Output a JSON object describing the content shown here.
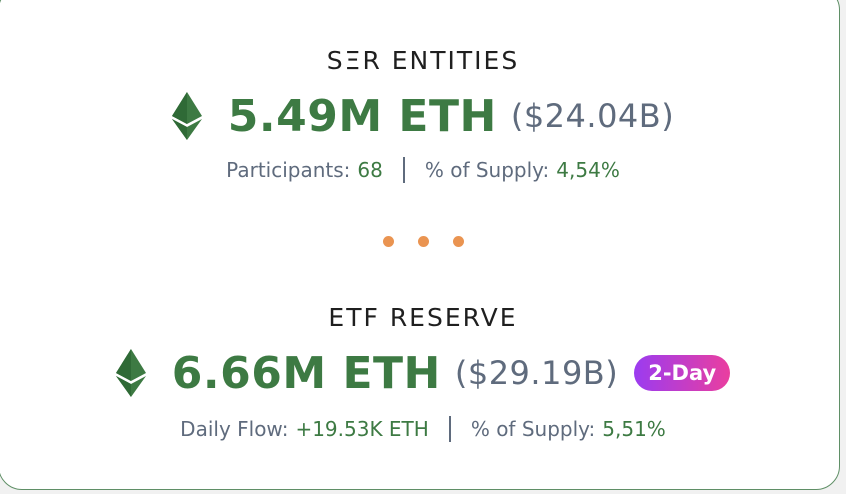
{
  "ser": {
    "heading": "SΞR ENTITIES",
    "amount": "5.49M ETH",
    "usd": "($24.04B)",
    "stats": [
      {
        "label": "Participants:",
        "value": "68"
      },
      {
        "label": "% of Supply:",
        "value": "4,54%"
      }
    ]
  },
  "etf": {
    "heading": "ETF RESERVE",
    "amount": "6.66M ETH",
    "usd": "($29.19B)",
    "badge": "2-Day",
    "stats": [
      {
        "label": "Daily Flow:",
        "value": "+19.53K ETH"
      },
      {
        "label": "% of Supply:",
        "value": "5,51%"
      }
    ]
  },
  "colors": {
    "accent_green": "#3d7a43",
    "muted_text": "#5f6b7d",
    "dots": "#ea9451",
    "badge_gradient": [
      "#9b3cf0",
      "#ea3e9f"
    ]
  },
  "icons": {
    "amount_icon": "ethereum-icon",
    "divider": "dots-divider"
  }
}
